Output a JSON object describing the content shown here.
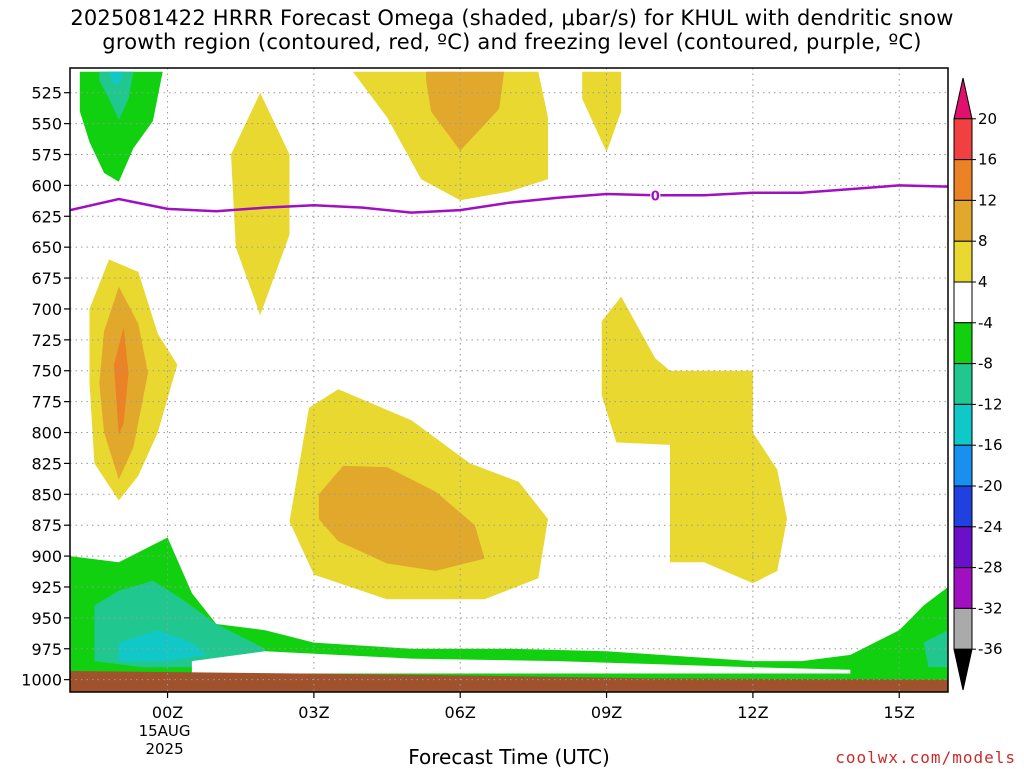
{
  "title": {
    "line1": "2025081422 HRRR Forecast Omega (shaded, μbar/s) for KHUL with dendritic snow",
    "line2": "growth region (contoured, red, ºC) and freezing level (contoured, purple, ºC)"
  },
  "footer": {
    "xlabel": "Forecast Time (UTC)",
    "credit": "coolwx.com/models"
  },
  "chart_data": {
    "type": "heatmap",
    "title": "2025081422 HRRR Forecast Omega (shaded, μbar/s) for KHUL with dendritic snow growth region (contoured, red, ºC) and freezing level (contoured, purple, ºC)",
    "xlabel": "Forecast Time (UTC)",
    "ylabel": "",
    "y_axis": {
      "scale": "pressure",
      "inverted": true,
      "ylim": [
        1010,
        505
      ],
      "ticks": [
        525,
        550,
        575,
        600,
        625,
        650,
        675,
        700,
        725,
        750,
        775,
        800,
        825,
        850,
        875,
        900,
        925,
        950,
        975,
        1000
      ]
    },
    "x_axis": {
      "unit": "forecast hour",
      "xlim": [
        -2,
        16
      ],
      "ticks": [
        {
          "hour": 0,
          "label": "00Z",
          "sub": [
            "15AUG",
            "2025"
          ]
        },
        {
          "hour": 3,
          "label": "03Z"
        },
        {
          "hour": 6,
          "label": "06Z"
        },
        {
          "hour": 9,
          "label": "09Z"
        },
        {
          "hour": 12,
          "label": "12Z"
        },
        {
          "hour": 15,
          "label": "15Z"
        }
      ]
    },
    "grid": true,
    "colorbar": {
      "levels": [
        20,
        16,
        12,
        8,
        4,
        -4,
        -8,
        -12,
        -16,
        -20,
        -24,
        -28,
        -32,
        -36
      ],
      "colors": [
        "#e0106e",
        "#f24040",
        "#ec8226",
        "#e2a82c",
        "#e8d830",
        "#ffffff",
        "#10d010",
        "#20c890",
        "#10c8c8",
        "#1890f0",
        "#2040e0",
        "#6a10c8",
        "#a010c0",
        "#aaaaaa",
        "#000000"
      ]
    },
    "freezing_level": {
      "label": "0",
      "color": "#a010c0",
      "points": [
        [
          -2,
          620
        ],
        [
          -1,
          611
        ],
        [
          0,
          619
        ],
        [
          1,
          621
        ],
        [
          2,
          618
        ],
        [
          3,
          616
        ],
        [
          4,
          618
        ],
        [
          5,
          622
        ],
        [
          6,
          620
        ],
        [
          7,
          614
        ],
        [
          8,
          610
        ],
        [
          9,
          607
        ],
        [
          10,
          608
        ],
        [
          11,
          608
        ],
        [
          12,
          606
        ],
        [
          13,
          606
        ],
        [
          14,
          603
        ],
        [
          15,
          600
        ],
        [
          16,
          601
        ]
      ]
    },
    "regions": [
      {
        "color": "#10d010",
        "points": [
          [
            -1.8,
            508
          ],
          [
            -0.1,
            508
          ],
          [
            -0.3,
            548
          ],
          [
            -0.7,
            570
          ],
          [
            -1.0,
            597
          ],
          [
            -1.3,
            590
          ],
          [
            -1.6,
            565
          ],
          [
            -1.8,
            540
          ]
        ]
      },
      {
        "color": "#20c890",
        "points": [
          [
            -1.4,
            508
          ],
          [
            -0.7,
            508
          ],
          [
            -0.8,
            530
          ],
          [
            -1.0,
            547
          ],
          [
            -1.2,
            530
          ],
          [
            -1.4,
            515
          ]
        ]
      },
      {
        "color": "#10c8c8",
        "points": [
          [
            -1.2,
            508
          ],
          [
            -0.9,
            508
          ],
          [
            -1.0,
            518
          ],
          [
            -1.1,
            518
          ]
        ]
      },
      {
        "color": "#e8d830",
        "points": [
          [
            1.3,
            575
          ],
          [
            1.9,
            525
          ],
          [
            2.5,
            575
          ],
          [
            2.5,
            640
          ],
          [
            1.9,
            705
          ],
          [
            1.4,
            650
          ]
        ]
      },
      {
        "color": "#e8d830",
        "points": [
          [
            3.8,
            508
          ],
          [
            7.6,
            508
          ],
          [
            7.8,
            545
          ],
          [
            7.8,
            595
          ],
          [
            7.0,
            605
          ],
          [
            6.0,
            612
          ],
          [
            5.2,
            595
          ],
          [
            4.5,
            545
          ]
        ]
      },
      {
        "color": "#e2a82c",
        "points": [
          [
            5.3,
            508
          ],
          [
            6.9,
            508
          ],
          [
            6.8,
            538
          ],
          [
            6.0,
            572
          ],
          [
            5.4,
            540
          ],
          [
            5.3,
            515
          ]
        ]
      },
      {
        "color": "#e8d830",
        "points": [
          [
            8.5,
            508
          ],
          [
            9.3,
            508
          ],
          [
            9.3,
            540
          ],
          [
            9.0,
            573
          ],
          [
            8.5,
            530
          ]
        ]
      },
      {
        "color": "#e8d830",
        "points": [
          [
            -1.6,
            700
          ],
          [
            -1.2,
            660
          ],
          [
            -0.6,
            670
          ],
          [
            -0.2,
            720
          ],
          [
            0.2,
            745
          ],
          [
            -0.2,
            800
          ],
          [
            -0.6,
            835
          ],
          [
            -1.0,
            855
          ],
          [
            -1.5,
            825
          ],
          [
            -1.6,
            760
          ]
        ]
      },
      {
        "color": "#e2a82c",
        "points": [
          [
            -1.3,
            718
          ],
          [
            -1.0,
            682
          ],
          [
            -0.6,
            712
          ],
          [
            -0.4,
            752
          ],
          [
            -0.7,
            812
          ],
          [
            -1.0,
            838
          ],
          [
            -1.3,
            800
          ],
          [
            -1.4,
            760
          ]
        ]
      },
      {
        "color": "#ec8226",
        "points": [
          [
            -1.1,
            745
          ],
          [
            -0.9,
            715
          ],
          [
            -0.8,
            752
          ],
          [
            -0.9,
            792
          ],
          [
            -1.0,
            802
          ]
        ]
      },
      {
        "color": "#e8d830",
        "points": [
          [
            2.5,
            872
          ],
          [
            2.9,
            780
          ],
          [
            3.5,
            765
          ],
          [
            5.0,
            790
          ],
          [
            6.2,
            825
          ],
          [
            7.2,
            840
          ],
          [
            7.8,
            870
          ],
          [
            7.6,
            918
          ],
          [
            6.5,
            935
          ],
          [
            4.5,
            935
          ],
          [
            3.0,
            915
          ]
        ]
      },
      {
        "color": "#e2a82c",
        "points": [
          [
            3.1,
            850
          ],
          [
            3.6,
            827
          ],
          [
            4.5,
            828
          ],
          [
            5.5,
            848
          ],
          [
            6.3,
            875
          ],
          [
            6.5,
            902
          ],
          [
            5.5,
            912
          ],
          [
            4.5,
            906
          ],
          [
            3.5,
            888
          ],
          [
            3.1,
            870
          ]
        ]
      },
      {
        "color": "#e8d830",
        "points": [
          [
            8.9,
            710
          ],
          [
            9.3,
            690
          ],
          [
            10.0,
            740
          ],
          [
            10.3,
            750
          ],
          [
            12.0,
            750
          ],
          [
            12.0,
            800
          ],
          [
            12.5,
            830
          ],
          [
            12.7,
            870
          ],
          [
            12.5,
            912
          ],
          [
            12.0,
            922
          ],
          [
            11.0,
            905
          ],
          [
            10.3,
            905
          ],
          [
            10.3,
            810
          ],
          [
            9.2,
            808
          ],
          [
            8.9,
            770
          ]
        ]
      },
      {
        "color": "#10d010",
        "points": [
          [
            -2,
            900
          ],
          [
            -1.0,
            905
          ],
          [
            -0.5,
            895
          ],
          [
            0.0,
            885
          ],
          [
            0.5,
            930
          ],
          [
            1.0,
            955
          ],
          [
            2.0,
            960
          ],
          [
            3.0,
            970
          ],
          [
            5.0,
            975
          ],
          [
            7.0,
            975
          ],
          [
            9.0,
            977
          ],
          [
            12.0,
            985
          ],
          [
            13.0,
            985
          ],
          [
            14.0,
            980
          ],
          [
            15.0,
            960
          ],
          [
            15.5,
            940
          ],
          [
            16.0,
            925
          ],
          [
            16.0,
            1005
          ],
          [
            -2,
            1005
          ]
        ]
      },
      {
        "color": "#20c890",
        "points": [
          [
            -1.5,
            940
          ],
          [
            -1.0,
            928
          ],
          [
            -0.3,
            920
          ],
          [
            0.3,
            935
          ],
          [
            1.0,
            955
          ],
          [
            2.0,
            975
          ],
          [
            2.0,
            987
          ],
          [
            1.0,
            990
          ],
          [
            -0.5,
            990
          ],
          [
            -1.5,
            985
          ]
        ]
      },
      {
        "color": "#10c8c8",
        "points": [
          [
            -1.0,
            970
          ],
          [
            -0.2,
            960
          ],
          [
            0.5,
            970
          ],
          [
            0.8,
            980
          ],
          [
            0.0,
            985
          ],
          [
            -1.0,
            985
          ]
        ]
      },
      {
        "color": "#20c890",
        "points": [
          [
            15.5,
            970
          ],
          [
            16.0,
            960
          ],
          [
            16.0,
            990
          ],
          [
            15.6,
            990
          ]
        ]
      },
      {
        "color": "#ffffff",
        "points": [
          [
            0.5,
            985
          ],
          [
            2.0,
            977
          ],
          [
            5.0,
            983
          ],
          [
            8.0,
            985
          ],
          [
            12.0,
            990
          ],
          [
            14.0,
            992
          ],
          [
            14.0,
            995
          ],
          [
            8.0,
            995
          ],
          [
            2.0,
            995
          ],
          [
            0.5,
            995
          ]
        ]
      },
      {
        "color": "#a0522d",
        "points": [
          [
            -2,
            993
          ],
          [
            5,
            996
          ],
          [
            10,
            999
          ],
          [
            16,
            1000
          ],
          [
            16,
            1010
          ],
          [
            -2,
            1010
          ]
        ]
      }
    ]
  }
}
